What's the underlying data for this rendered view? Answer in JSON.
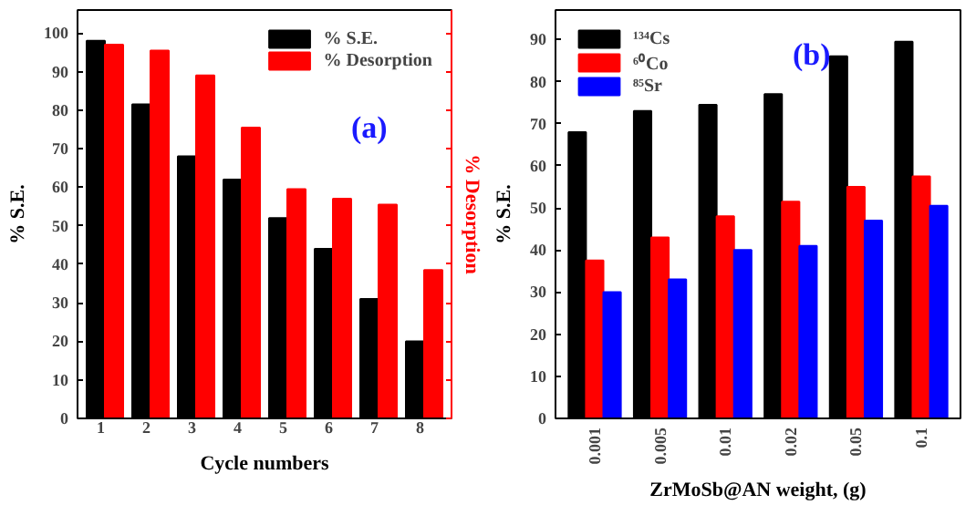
{
  "chart_data": [
    {
      "type": "bar",
      "categories": [
        "1",
        "2",
        "3",
        "4",
        "5",
        "6",
        "7",
        "8"
      ],
      "xlabel": "Cycle numbers",
      "ylabel": "% S.E.",
      "y2label": "% Desorption",
      "ylim": [
        0,
        106
      ],
      "yticks": [
        0,
        10,
        20,
        30,
        40,
        50,
        60,
        70,
        80,
        90,
        100
      ],
      "annotations": [
        "(a)"
      ],
      "legend": "top right",
      "grid": false,
      "series": [
        {
          "name": "% S.E.",
          "color": "#000000",
          "values": [
            98,
            81.5,
            68,
            62,
            52,
            44,
            31,
            20
          ]
        },
        {
          "name": "% Desorption",
          "color": "#ff0000",
          "values": [
            97,
            95.5,
            89,
            75.5,
            59.5,
            57,
            55.5,
            38.5
          ]
        }
      ]
    },
    {
      "type": "bar",
      "categories": [
        "0.001",
        "0.005",
        "0.01",
        "0.02",
        "0.05",
        "0.1"
      ],
      "xlabel": "ZrMoSb@AN weight, (g)",
      "ylabel": "% S.E.",
      "ylim": [
        0,
        97
      ],
      "yticks": [
        0,
        10,
        20,
        30,
        40,
        50,
        60,
        70,
        80,
        90
      ],
      "annotations": [
        "(b)"
      ],
      "legend": "top left",
      "grid": false,
      "series": [
        {
          "name": "¹³⁴Cs",
          "color": "#000000",
          "values": [
            68,
            73,
            74.5,
            77,
            86,
            89.5
          ]
        },
        {
          "name": "⁶⁰Co",
          "color": "#ff0000",
          "values": [
            37.5,
            43,
            48,
            51.5,
            55,
            57.5
          ]
        },
        {
          "name": "⁸⁵Sr",
          "color": "#0000ff",
          "values": [
            30,
            33,
            40,
            41,
            47,
            50.5
          ]
        }
      ]
    }
  ]
}
